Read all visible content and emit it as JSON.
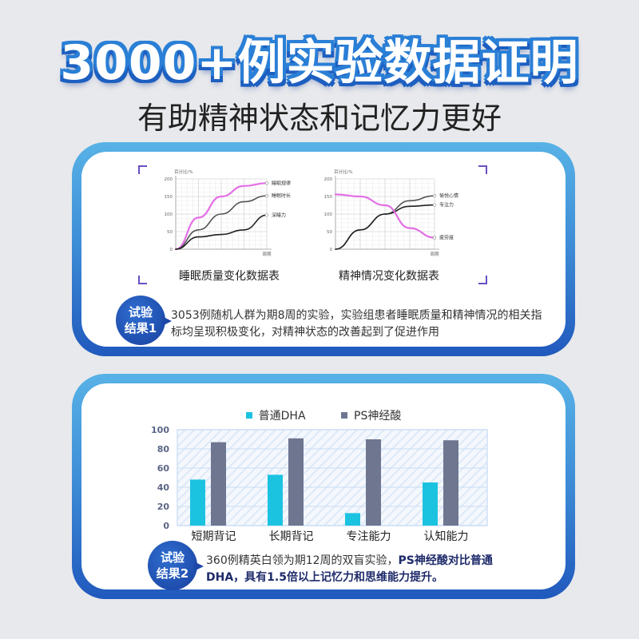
{
  "header": {
    "title": "3000+例实验数据证明",
    "subtitle": "有助精神状态和记忆力更好"
  },
  "section1": {
    "badge": [
      "试验",
      "结果1"
    ],
    "text": "3053例随机人群为期8周的实验，实验组患者睡眠质量和精神情况的相关指标均呈现积极变化，对精神状态的改善起到了促进作用",
    "charts": [
      {
        "caption": "睡眠质量变化数据表",
        "ylabel": "百分比/%",
        "xlabel": "周期"
      },
      {
        "caption": "精神情况变化数据表",
        "ylabel": "百分比/%",
        "xlabel": "周期"
      }
    ]
  },
  "section2": {
    "badge": [
      "试验",
      "结果2"
    ],
    "text_plain": "360例精英白领为期12周的双盲实验，",
    "text_bold": "PS神经酸对比普通DHA，具有1.5倍以上记忆力和思维能力提升。"
  },
  "colors": {
    "cyan": "#1cc3e0",
    "slate": "#6f7690",
    "magenta": "#e36fe6",
    "blue_dark": "#1d5fc0",
    "blue_light": "#58b2e6"
  },
  "chart_data": [
    {
      "type": "line",
      "title": "睡眠质量变化数据表",
      "xlabel": "周期",
      "ylabel": "百分比/%",
      "ylim": [
        0,
        200
      ],
      "yticks": [
        0,
        50,
        100,
        150,
        200
      ],
      "x": [
        0,
        1,
        2,
        3,
        4
      ],
      "series": [
        {
          "name": "睡眠规律",
          "color": "#e36fe6",
          "values": [
            0,
            90,
            150,
            180,
            188
          ]
        },
        {
          "name": "睡眠时长",
          "color": "#555555",
          "values": [
            0,
            55,
            100,
            135,
            152
          ]
        },
        {
          "name": "深睡力",
          "color": "#222222",
          "values": [
            0,
            35,
            42,
            55,
            97
          ]
        }
      ],
      "grid": true
    },
    {
      "type": "line",
      "title": "精神情况变化数据表",
      "xlabel": "周期",
      "ylabel": "百分比/%",
      "ylim": [
        0,
        200
      ],
      "yticks": [
        0,
        50,
        100,
        150,
        200
      ],
      "x": [
        0,
        1,
        2,
        3,
        4
      ],
      "series": [
        {
          "name": "愉悦心情",
          "color": "#555555",
          "values": [
            0,
            55,
            100,
            138,
            152
          ]
        },
        {
          "name": "专注力",
          "color": "#222222",
          "values": [
            0,
            55,
            100,
            122,
            126
          ]
        },
        {
          "name": "疲劳度",
          "color": "#e36fe6",
          "values": [
            156,
            150,
            125,
            60,
            33
          ]
        }
      ],
      "grid": true
    },
    {
      "type": "bar",
      "title": "",
      "categories": [
        "短期背记",
        "长期背记",
        "专注能力",
        "认知能力"
      ],
      "series": [
        {
          "name": "普通DHA",
          "color": "#1cc3e0",
          "values": [
            48,
            53,
            13,
            45
          ]
        },
        {
          "name": "PS神经酸",
          "color": "#6f7690",
          "values": [
            87,
            91,
            90,
            89
          ]
        }
      ],
      "ylim": [
        0,
        100
      ],
      "yticks": [
        0,
        20,
        40,
        60,
        80,
        100
      ],
      "legend_position": "top",
      "grid": true
    }
  ]
}
